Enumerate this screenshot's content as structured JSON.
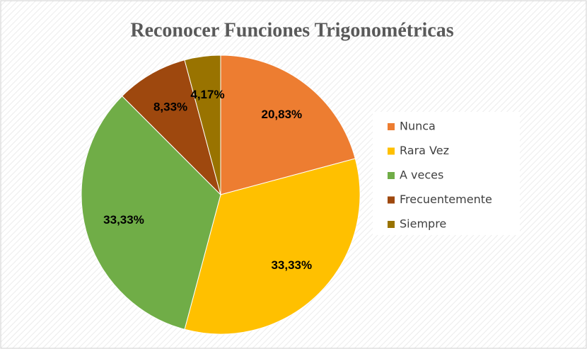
{
  "chart_data": {
    "type": "pie",
    "title": "Reconocer Funciones Trigonométricas",
    "categories": [
      "Nunca",
      "Rara Vez",
      "A veces",
      "Frecuentemente",
      "Siempre"
    ],
    "values": [
      20.83,
      33.33,
      33.33,
      8.33,
      4.17
    ],
    "value_labels": [
      "20,83%",
      "33,33%",
      "33,33%",
      "8,33%",
      "4,17%"
    ],
    "colors": [
      "#ED7D31",
      "#FFC000",
      "#70AD47",
      "#9E480E",
      "#997300"
    ],
    "legend": "right"
  }
}
